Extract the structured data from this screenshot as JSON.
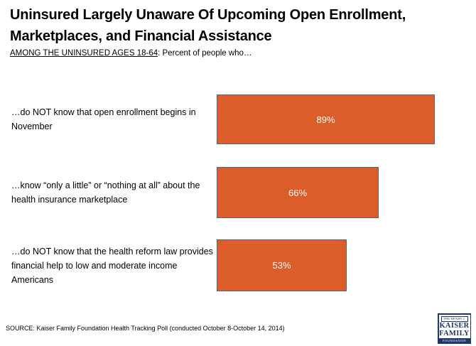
{
  "title": "Uninsured Largely Unaware Of Upcoming Open Enrollment,\nMarketplaces, and Financial Assistance",
  "subtitle": {
    "underlined": "AMONG THE UNINSURED AGES 18-64",
    "rest": ": Percent of people who…"
  },
  "chart_data": {
    "type": "bar",
    "orientation": "horizontal",
    "categories": [
      "…do NOT know that open enrollment begins in November",
      "…know “only a little” or “nothing at all” about the health insurance marketplace",
      "…do NOT know that the health reform law provides financial help to low and moderate income Americans"
    ],
    "values": [
      89,
      66,
      53
    ],
    "value_labels": [
      "89%",
      "66%",
      "53%"
    ],
    "xlim": [
      0,
      100
    ],
    "grid": false,
    "legend": false,
    "bar_color": "#DC5D29",
    "bar_border_color": "#5A6470",
    "value_label_color": "#FFFFFF"
  },
  "footer": {
    "source": "SOURCE: Kaiser Family Foundation Health Tracking Poll (conducted October 8-October 14, 2014)"
  },
  "logo": {
    "line1": "THE HENRY J.",
    "line2": "KAISER",
    "line3": "FAMILY",
    "line4": "FOUNDATION",
    "color": "#1E3868"
  }
}
